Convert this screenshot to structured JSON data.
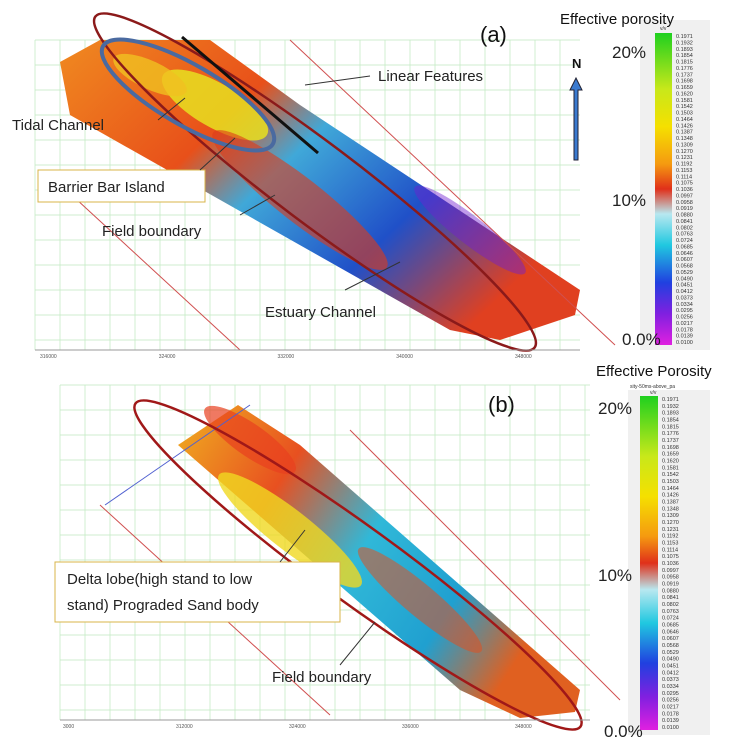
{
  "panels": [
    {
      "label": "(a)",
      "colorbar_title": "Effective porosity",
      "colorbar_unit": "v/v",
      "north": "N",
      "pct_top": "20%",
      "pct_mid": "10%",
      "pct_bottom": "0.0%",
      "annotations": [
        "Linear Features",
        "Tidal Channel",
        "Barrier Bar Island",
        "Field boundary",
        "Estuary Channel"
      ],
      "axis_labels": [
        "316000",
        "324000",
        "332000",
        "340000",
        "348000"
      ],
      "colorbar_labels": [
        "0.1971",
        "0.1932",
        "0.1893",
        "0.1854",
        "0.1815",
        "0.1776",
        "0.1737",
        "0.1698",
        "0.1659",
        "0.1620",
        "0.1581",
        "0.1542",
        "0.1503",
        "0.1464",
        "0.1426",
        "0.1387",
        "0.1348",
        "0.1309",
        "0.1270",
        "0.1231",
        "0.1192",
        "0.1153",
        "0.1114",
        "0.1075",
        "0.1036",
        "0.0997",
        "0.0958",
        "0.0919",
        "0.0880",
        "0.0841",
        "0.0802",
        "0.0763",
        "0.0724",
        "0.0685",
        "0.0646",
        "0.0607",
        "0.0568",
        "0.0529",
        "0.0490",
        "0.0451",
        "0.0412",
        "0.0373",
        "0.0334",
        "0.0295",
        "0.0256",
        "0.0217",
        "0.0178",
        "0.0139",
        "0.0100"
      ]
    },
    {
      "label": "(b)",
      "colorbar_title": "Effective Porosity",
      "colorbar_unit": "v/v",
      "colorbar_header": "sity-50ms-above_pa",
      "pct_top": "20%",
      "pct_mid": "10%",
      "pct_bottom": "0.0%",
      "annotations": [
        "Field boundary"
      ],
      "box_lines": [
        "Delta lobe(high stand to low",
        "stand) Prograded Sand body"
      ],
      "axis_labels": [
        "3000",
        "312000",
        "324000",
        "336000",
        "348000"
      ],
      "colorbar_labels": [
        "0.1971",
        "0.1932",
        "0.1893",
        "0.1854",
        "0.1815",
        "0.1776",
        "0.1737",
        "0.1698",
        "0.1659",
        "0.1620",
        "0.1581",
        "0.1542",
        "0.1503",
        "0.1464",
        "0.1426",
        "0.1387",
        "0.1348",
        "0.1309",
        "0.1270",
        "0.1231",
        "0.1192",
        "0.1153",
        "0.1114",
        "0.1075",
        "0.1036",
        "0.0997",
        "0.0958",
        "0.0919",
        "0.0880",
        "0.0841",
        "0.0802",
        "0.0763",
        "0.0724",
        "0.0685",
        "0.0646",
        "0.0607",
        "0.0568",
        "0.0529",
        "0.0490",
        "0.0451",
        "0.0412",
        "0.0373",
        "0.0334",
        "0.0295",
        "0.0256",
        "0.0217",
        "0.0178",
        "0.0139",
        "0.0100"
      ]
    }
  ]
}
